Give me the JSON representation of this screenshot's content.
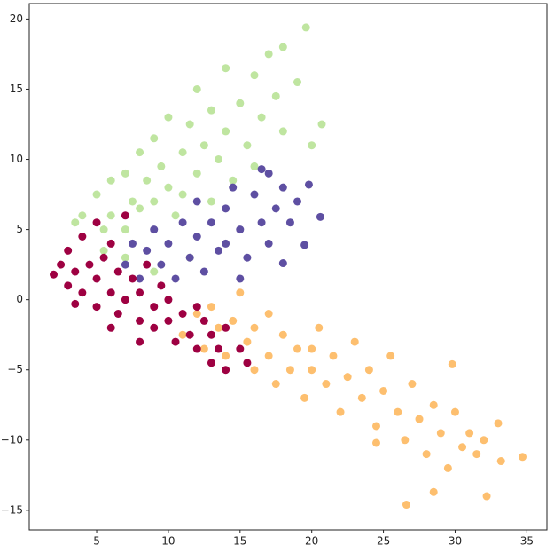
{
  "chart_data": {
    "type": "scatter",
    "xlim": [
      0.3,
      36.4
    ],
    "ylim": [
      -16.4,
      21.1
    ],
    "xticks": [
      5,
      10,
      15,
      20,
      25,
      30,
      35
    ],
    "yticks": [
      {
        "value": -15,
        "label": "−15"
      },
      {
        "value": -10,
        "label": "−10"
      },
      {
        "value": -5,
        "label": "−5"
      },
      0,
      5,
      10,
      15,
      20
    ],
    "grid": false,
    "series": [
      {
        "color": "#bfe5a0",
        "x": [
          3.5,
          4,
          5,
          5.5,
          6,
          6,
          7,
          7,
          7.5,
          8,
          8,
          8.5,
          9,
          9,
          9.5,
          10,
          10,
          10.5,
          11,
          11,
          11.5,
          12,
          12,
          12.5,
          13,
          13,
          13.5,
          14,
          14,
          14.5,
          15,
          15.5,
          16,
          16,
          16.5,
          17,
          17.5,
          18,
          18,
          19,
          19.6,
          20.7,
          20,
          5.5,
          7,
          9,
          11.5
        ],
        "values": [
          5.5,
          6,
          7.5,
          5,
          8.5,
          6,
          9,
          5,
          7,
          10.5,
          6.5,
          8.5,
          11.5,
          7,
          9.5,
          13,
          8,
          6,
          10.5,
          7.5,
          12.5,
          9,
          15,
          11,
          13.5,
          7,
          10,
          16.5,
          12,
          8.5,
          14,
          11,
          16,
          9.5,
          13,
          17.5,
          14.5,
          12,
          18,
          15.5,
          19.4,
          12.5,
          11,
          3.5,
          3,
          2,
          3
        ]
      },
      {
        "color": "#5e4fa2",
        "x": [
          7,
          7.5,
          8,
          8.5,
          9,
          9.5,
          10,
          10.5,
          11,
          11.5,
          12,
          12,
          12.5,
          13,
          13.5,
          14,
          14,
          14.5,
          15,
          15.5,
          16,
          16.5,
          17,
          17,
          17.5,
          18,
          18,
          18.5,
          19,
          19.5,
          19.8,
          20.6,
          16.5,
          15
        ],
        "values": [
          2.5,
          4,
          1.5,
          3.5,
          5,
          2.5,
          4,
          1.5,
          5.5,
          3,
          4.5,
          7,
          2,
          5.5,
          3.5,
          6.5,
          4,
          8,
          5,
          3,
          7.5,
          5.5,
          9,
          4,
          6.5,
          8,
          2.6,
          5.5,
          7,
          3.9,
          8.2,
          5.9,
          9.3,
          1.5
        ]
      },
      {
        "color": "#fdbf6f",
        "x": [
          11,
          12,
          12.5,
          13,
          13.5,
          14,
          14.5,
          15,
          15.5,
          16,
          16,
          17,
          17,
          17.5,
          18,
          18.5,
          19,
          19.5,
          20,
          20.5,
          21,
          21.5,
          22,
          22.5,
          23,
          23.5,
          24,
          24.5,
          25,
          25.5,
          26,
          26.5,
          27,
          27.5,
          28,
          28.5,
          29,
          29.5,
          30,
          30.5,
          31,
          31.5,
          32,
          33,
          34.7,
          26.6,
          28.5,
          32.2,
          29.8,
          33.2,
          24.5,
          20
        ],
        "values": [
          -2.5,
          -1,
          -3.5,
          -0.5,
          -2,
          -4,
          -1.5,
          0.5,
          -3,
          -5,
          -2,
          -1,
          -4,
          -6,
          -2.5,
          -5,
          -3.5,
          -7,
          -5,
          -2,
          -6,
          -4,
          -8,
          -5.5,
          -3,
          -7,
          -5,
          -9,
          -6.5,
          -4,
          -8,
          -10,
          -6,
          -8.5,
          -11,
          -7.5,
          -9.5,
          -12,
          -8,
          -10.5,
          -9.5,
          -11,
          -10,
          -8.8,
          -11.2,
          -14.6,
          -13.7,
          -14,
          -4.6,
          -11.5,
          -10.2,
          -3.5
        ]
      },
      {
        "color": "#9e0142",
        "x": [
          2,
          2.5,
          3,
          3,
          3.5,
          4,
          4,
          4.5,
          5,
          5,
          5,
          5.5,
          6,
          6,
          6.5,
          6.5,
          7,
          7,
          7.5,
          8,
          8,
          8.5,
          9,
          9,
          9.5,
          10,
          10,
          10.5,
          11,
          11.5,
          12,
          12,
          12.5,
          13,
          13,
          13.5,
          14,
          14,
          15,
          15.5,
          3.5,
          6,
          8
        ],
        "values": [
          1.8,
          2.5,
          3.5,
          1,
          2,
          4.5,
          0.5,
          2.5,
          5.5,
          1.5,
          -0.5,
          3,
          0.5,
          4,
          -1,
          2,
          6,
          0,
          1.5,
          -1.5,
          0.5,
          2.5,
          -0.5,
          -2,
          1,
          -1.5,
          0,
          -3,
          -1,
          -2.5,
          -0.5,
          -3.5,
          -1.5,
          -2.5,
          -4.5,
          -3.5,
          -2,
          -5,
          -3.5,
          -4.5,
          -0.3,
          -2,
          -3
        ]
      }
    ]
  }
}
